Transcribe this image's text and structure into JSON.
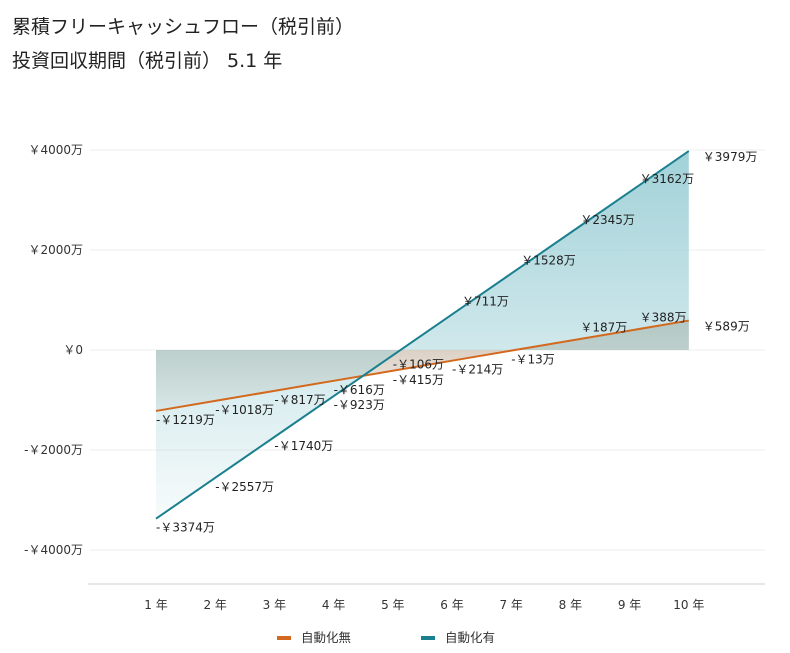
{
  "header": {
    "title": "累積フリーキャッシュフロー（税引前）",
    "subtitle": "投資回収期間（税引前） 5.1 年"
  },
  "chart_data": {
    "type": "line",
    "title": "累積フリーキャッシュフロー（税引前）",
    "subtitle": "投資回収期間（税引前） 5.1 年",
    "xlabel": "",
    "ylabel": "",
    "categories": [
      "1 年",
      "2 年",
      "3 年",
      "4 年",
      "5 年",
      "6 年",
      "7 年",
      "8 年",
      "9 年",
      "10 年"
    ],
    "x": [
      1,
      2,
      3,
      4,
      5,
      6,
      7,
      8,
      9,
      10
    ],
    "ylim": [
      -4400,
      4400
    ],
    "yticks": [
      -4000,
      -2000,
      0,
      2000,
      4000
    ],
    "ytick_labels": [
      "-￥4000万",
      "-￥2000万",
      "￥0",
      "￥2000万",
      "￥4000万"
    ],
    "grid": true,
    "legend_position": "bottom",
    "series": [
      {
        "name": "自動化無",
        "color": "#d2691e",
        "fill_color": "#c9b8a6",
        "values": [
          -1219,
          -1018,
          -817,
          -616,
          -415,
          -214,
          -13,
          187,
          388,
          589
        ],
        "labels": [
          "-￥1219万",
          "-￥1018万",
          "-￥817万",
          "-￥616万",
          "-￥415万",
          "-￥214万",
          "-￥13万",
          "￥187万",
          "￥388万",
          "￥589万"
        ]
      },
      {
        "name": "自動化有",
        "color": "#1a7f8e",
        "fill_color": "#9ccfd6",
        "values": [
          -3374,
          -2557,
          -1740,
          -923,
          -106,
          711,
          1528,
          2345,
          3162,
          3979
        ],
        "labels": [
          "-￥3374万",
          "-￥2557万",
          "-￥1740万",
          "-￥923万",
          "-￥106万",
          "￥711万",
          "￥1528万",
          "￥2345万",
          "￥3162万",
          "￥3979万"
        ]
      }
    ]
  }
}
